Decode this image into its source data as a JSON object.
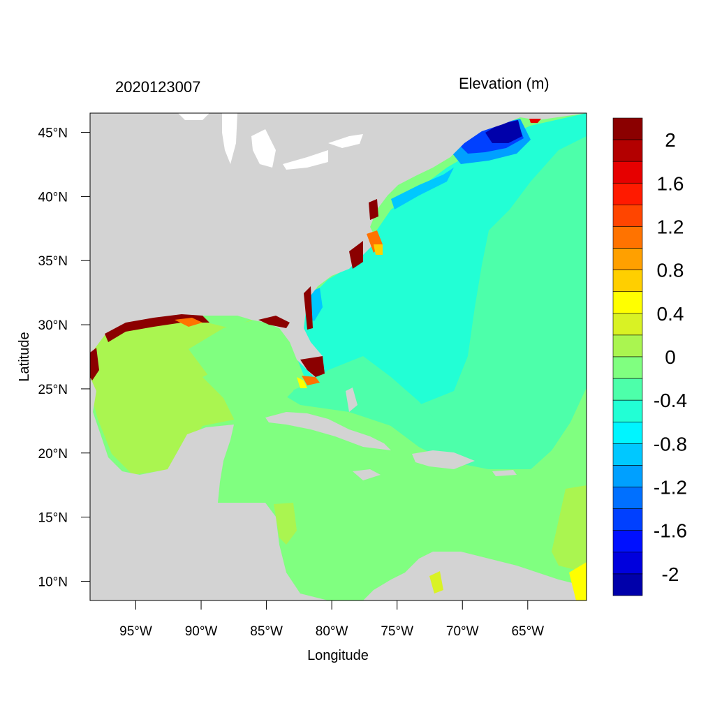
{
  "header": {
    "date_label": "2020123007",
    "variable_label": "Elevation (m)"
  },
  "map": {
    "lon_range": [
      -98.5,
      -60.5
    ],
    "lat_range": [
      8.5,
      46.5
    ],
    "land_color": "#d3d3d3",
    "xaxis": {
      "title": "Longitude",
      "ticks": [
        {
          "lon": -95,
          "label": "95°W"
        },
        {
          "lon": -90,
          "label": "90°W"
        },
        {
          "lon": -85,
          "label": "85°W"
        },
        {
          "lon": -80,
          "label": "80°W"
        },
        {
          "lon": -75,
          "label": "75°W"
        },
        {
          "lon": -70,
          "label": "70°W"
        },
        {
          "lon": -65,
          "label": "65°W"
        }
      ]
    },
    "yaxis": {
      "title": "Latitude",
      "ticks": [
        {
          "lat": 45,
          "label": "45°N"
        },
        {
          "lat": 40,
          "label": "40°N"
        },
        {
          "lat": 35,
          "label": "35°N"
        },
        {
          "lat": 30,
          "label": "30°N"
        },
        {
          "lat": 25,
          "label": "25°N"
        },
        {
          "lat": 20,
          "label": "20°N"
        },
        {
          "lat": 15,
          "label": "15°N"
        },
        {
          "lat": 10,
          "label": "10°N"
        }
      ]
    }
  },
  "colorbar": {
    "colors": [
      "#8b0000",
      "#b30000",
      "#e60000",
      "#ff1a00",
      "#ff4500",
      "#ff7300",
      "#ffa000",
      "#ffcf00",
      "#ffff00",
      "#d9f224",
      "#aaf550",
      "#80ff80",
      "#4dffaa",
      "#22ffd5",
      "#00f5ff",
      "#00c8ff",
      "#00a0ff",
      "#0070ff",
      "#0040ff",
      "#0010ff",
      "#0000dd",
      "#0000aa"
    ],
    "labels": [
      "2",
      "1.6",
      "1.2",
      "0.8",
      "0.4",
      "0",
      "-0.4",
      "-0.8",
      "-1.2",
      "-1.6",
      "-2"
    ]
  }
}
